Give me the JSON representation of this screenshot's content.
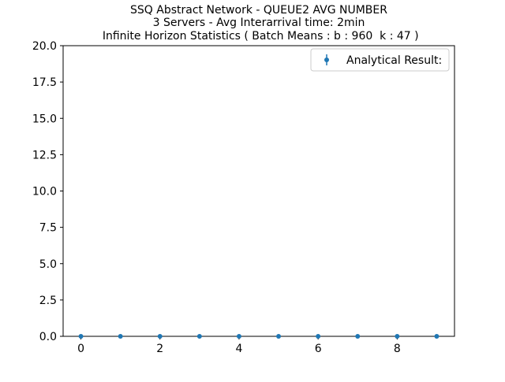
{
  "chart_data": {
    "type": "scatter",
    "title_lines": [
      "SSQ Abstract Network - QUEUE2 AVG NUMBER",
      "3 Servers -  Avg Interarrival time: 2min",
      " Infinite Horizon Statistics ( Batch Means : b : 960  k : 47 )"
    ],
    "xlabel": "",
    "ylabel": "",
    "xlim": [
      -0.45,
      9.45
    ],
    "ylim": [
      0,
      20
    ],
    "x_ticks": [
      0,
      2,
      4,
      6,
      8
    ],
    "x_tick_labels": [
      "0",
      "2",
      "4",
      "6",
      "8"
    ],
    "y_ticks": [
      0,
      2.5,
      5,
      7.5,
      10,
      12.5,
      15,
      17.5,
      20
    ],
    "y_tick_labels": [
      "0.0",
      "2.5",
      "5.0",
      "7.5",
      "10.0",
      "12.5",
      "15.0",
      "17.5",
      "20.0"
    ],
    "grid": false,
    "legend_position": "top-right",
    "series": [
      {
        "name": "Analytical Result:",
        "color": "#1f77b4",
        "marker": "point-with-errorbar",
        "x": [
          0,
          1,
          2,
          3,
          4,
          5,
          6,
          7,
          8,
          9
        ],
        "y": [
          0,
          0,
          0,
          0,
          0,
          0,
          0,
          0,
          0,
          0
        ]
      }
    ]
  }
}
